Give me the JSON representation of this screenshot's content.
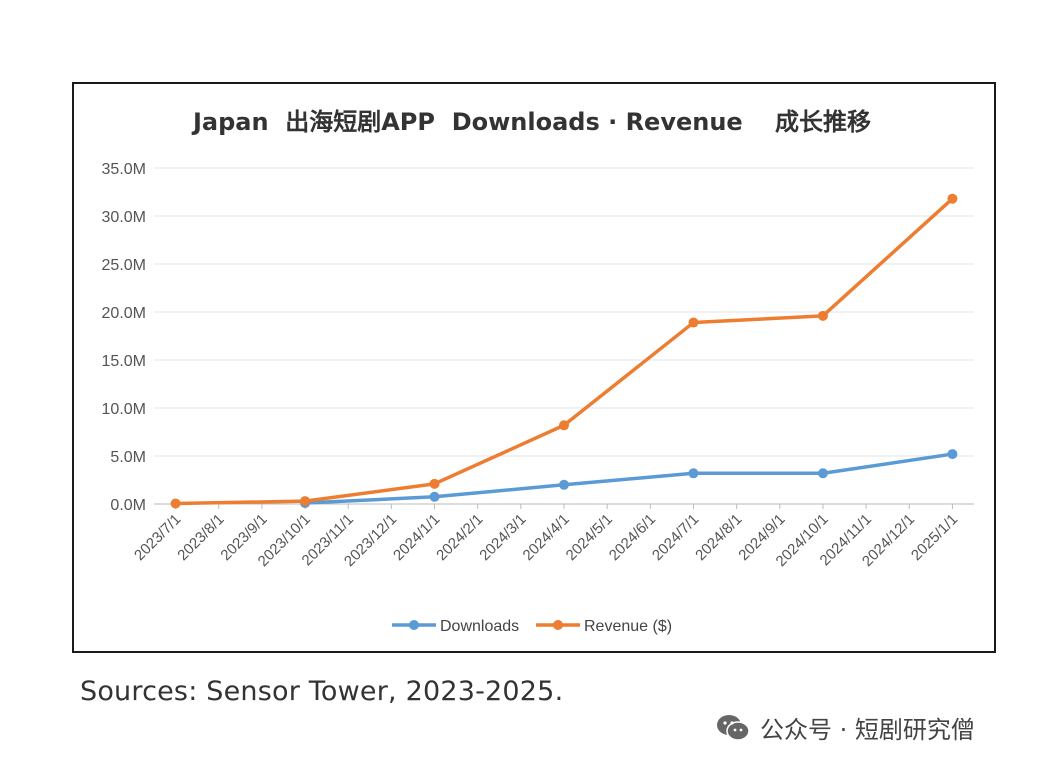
{
  "chart_data": {
    "type": "line",
    "title": "Japan  出海短剧APP  Downloads · Revenue　 成长推移",
    "xlabel": "",
    "ylabel": "",
    "ylim": [
      0,
      35000000
    ],
    "y_ticks": [
      "0.0M",
      "5.0M",
      "10.0M",
      "15.0M",
      "20.0M",
      "25.0M",
      "30.0M",
      "35.0M"
    ],
    "categories": [
      "2023/7/1",
      "2023/8/1",
      "2023/9/1",
      "2023/10/1",
      "2023/11/1",
      "2023/12/1",
      "2024/1/1",
      "2024/2/1",
      "2024/3/1",
      "2024/4/1",
      "2024/5/1",
      "2024/6/1",
      "2024/7/1",
      "2024/8/1",
      "2024/9/1",
      "2024/10/1",
      "2024/11/1",
      "2024/12/1",
      "2025/1/1"
    ],
    "series": [
      {
        "name": "Downloads",
        "color": "#5b9bd5",
        "points": [
          {
            "x": "2023/10/1",
            "y": 100000
          },
          {
            "x": "2024/1/1",
            "y": 750000
          },
          {
            "x": "2024/4/1",
            "y": 2000000
          },
          {
            "x": "2024/7/1",
            "y": 3200000
          },
          {
            "x": "2024/10/1",
            "y": 3200000
          },
          {
            "x": "2025/1/1",
            "y": 5200000
          }
        ]
      },
      {
        "name": "Revenue ($)",
        "color": "#ed7d31",
        "points": [
          {
            "x": "2023/7/1",
            "y": 50000
          },
          {
            "x": "2023/10/1",
            "y": 300000
          },
          {
            "x": "2024/1/1",
            "y": 2100000
          },
          {
            "x": "2024/4/1",
            "y": 8200000
          },
          {
            "x": "2024/7/1",
            "y": 18900000
          },
          {
            "x": "2024/10/1",
            "y": 19600000
          },
          {
            "x": "2025/1/1",
            "y": 31800000
          }
        ]
      }
    ],
    "legend": "bottom-center",
    "grid": true
  },
  "caption": "Sources: Sensor Tower, 2023-2025.",
  "watermark": {
    "icon": "wechat-icon",
    "text": "公众号 · 短剧研究僧"
  }
}
